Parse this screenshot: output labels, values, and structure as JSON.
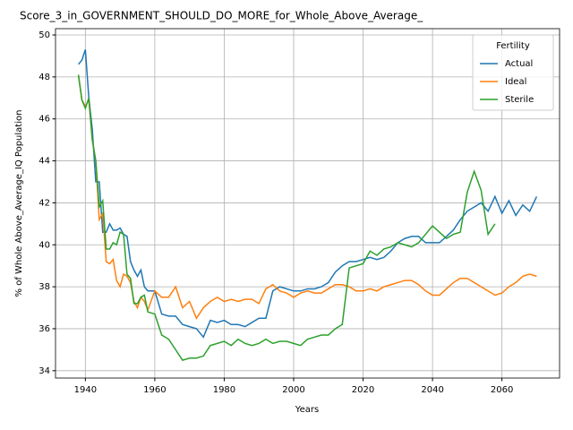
{
  "chart_data": {
    "type": "line",
    "title": "Score_3_in_GOVERNMENT_SHOULD_DO_MORE_for_Whole_Above_Average_",
    "xlabel": "Years",
    "ylabel": "% of Whole Above_Average_IQ Population",
    "legend_title": "Fertility",
    "legend": "upper right",
    "grid": true,
    "xlim": [
      1931.4,
      2076.6
    ],
    "ylim": [
      33.65,
      50.3
    ],
    "xticks": [
      1940,
      1960,
      1980,
      2000,
      2020,
      2040,
      2060
    ],
    "yticks": [
      34,
      36,
      38,
      40,
      42,
      44,
      46,
      48,
      50
    ],
    "x": [
      1938,
      1939,
      1940,
      1941,
      1942,
      1943,
      1944,
      1945,
      1946,
      1947,
      1948,
      1949,
      1950,
      1951,
      1952,
      1953,
      1954,
      1955,
      1956,
      1957,
      1958,
      1960,
      1962,
      1964,
      1966,
      1968,
      1970,
      1972,
      1974,
      1976,
      1978,
      1980,
      1982,
      1984,
      1986,
      1988,
      1990,
      1992,
      1994,
      1996,
      1998,
      2000,
      2002,
      2004,
      2006,
      2008,
      2010,
      2012,
      2014,
      2016,
      2018,
      2020,
      2022,
      2024,
      2026,
      2028,
      2030,
      2032,
      2034,
      2036,
      2038,
      2040,
      2042,
      2044,
      2046,
      2048,
      2050,
      2052,
      2054,
      2056,
      2058,
      2060,
      2062,
      2064,
      2066,
      2068,
      2070
    ],
    "series": [
      {
        "name": "Actual",
        "color": "#1f77b4",
        "values": [
          48.6,
          48.8,
          49.3,
          47.0,
          45.5,
          43.0,
          43.0,
          40.6,
          40.6,
          41.0,
          40.7,
          40.7,
          40.8,
          40.5,
          40.4,
          39.2,
          38.8,
          38.5,
          38.8,
          38.0,
          37.8,
          37.8,
          36.7,
          36.6,
          36.6,
          36.2,
          36.1,
          36.0,
          35.6,
          36.4,
          36.3,
          36.4,
          36.2,
          36.2,
          36.1,
          36.3,
          36.5,
          36.5,
          37.8,
          38.0,
          37.9,
          37.8,
          37.8,
          37.9,
          37.9,
          38.0,
          38.2,
          38.7,
          39.0,
          39.2,
          39.2,
          39.3,
          39.4,
          39.3,
          39.4,
          39.7,
          40.1,
          40.3,
          40.4,
          40.4,
          40.1,
          40.1,
          40.1,
          40.4,
          40.7,
          41.2,
          41.6,
          41.8,
          42.0,
          41.6,
          42.3,
          41.5,
          42.1,
          41.4,
          41.9,
          41.6,
          42.3
        ]
      },
      {
        "name": "Ideal",
        "color": "#ff7f0e",
        "values": [
          48.1,
          46.9,
          46.6,
          46.9,
          45.0,
          44.0,
          41.2,
          41.5,
          39.2,
          39.1,
          39.3,
          38.3,
          38.0,
          38.6,
          38.5,
          38.2,
          37.3,
          37.0,
          37.5,
          37.3,
          36.9,
          37.8,
          37.5,
          37.5,
          38.0,
          37.0,
          37.3,
          36.5,
          37.0,
          37.3,
          37.5,
          37.3,
          37.4,
          37.3,
          37.4,
          37.4,
          37.2,
          37.9,
          38.1,
          37.8,
          37.7,
          37.5,
          37.7,
          37.8,
          37.7,
          37.7,
          37.9,
          38.1,
          38.1,
          38.0,
          37.8,
          37.8,
          37.9,
          37.8,
          38.0,
          38.1,
          38.2,
          38.3,
          38.3,
          38.1,
          37.8,
          37.6,
          37.6,
          37.9,
          38.2,
          38.4,
          38.4,
          38.2,
          38.0,
          37.8,
          37.6,
          37.7,
          38.0,
          38.2,
          38.5,
          38.6,
          38.5
        ]
      },
      {
        "name": "Sterile",
        "color": "#2ca02c",
        "values": [
          48.1,
          46.9,
          46.5,
          47.0,
          45.0,
          44.0,
          41.8,
          42.1,
          39.8,
          39.8,
          40.1,
          40.0,
          40.6,
          40.5,
          38.6,
          38.4,
          37.2,
          37.2,
          37.5,
          37.6,
          36.8,
          36.7,
          35.7,
          35.5,
          35.0,
          34.5,
          34.6,
          34.6,
          34.7,
          35.2,
          35.3,
          35.4,
          35.2,
          35.5,
          35.3,
          35.2,
          35.3,
          35.5,
          35.3,
          35.4,
          35.4,
          35.3,
          35.2,
          35.5,
          35.6,
          35.7,
          35.7,
          36.0,
          36.2,
          38.9,
          39.0,
          39.1,
          39.7,
          39.5,
          39.8,
          39.9,
          40.1,
          40.0,
          39.9,
          40.1,
          40.5,
          40.9,
          40.6,
          40.3,
          40.5,
          40.6,
          42.5,
          43.5,
          42.6,
          40.5,
          41.0,
          null,
          null,
          null,
          null,
          null,
          null
        ]
      }
    ]
  }
}
